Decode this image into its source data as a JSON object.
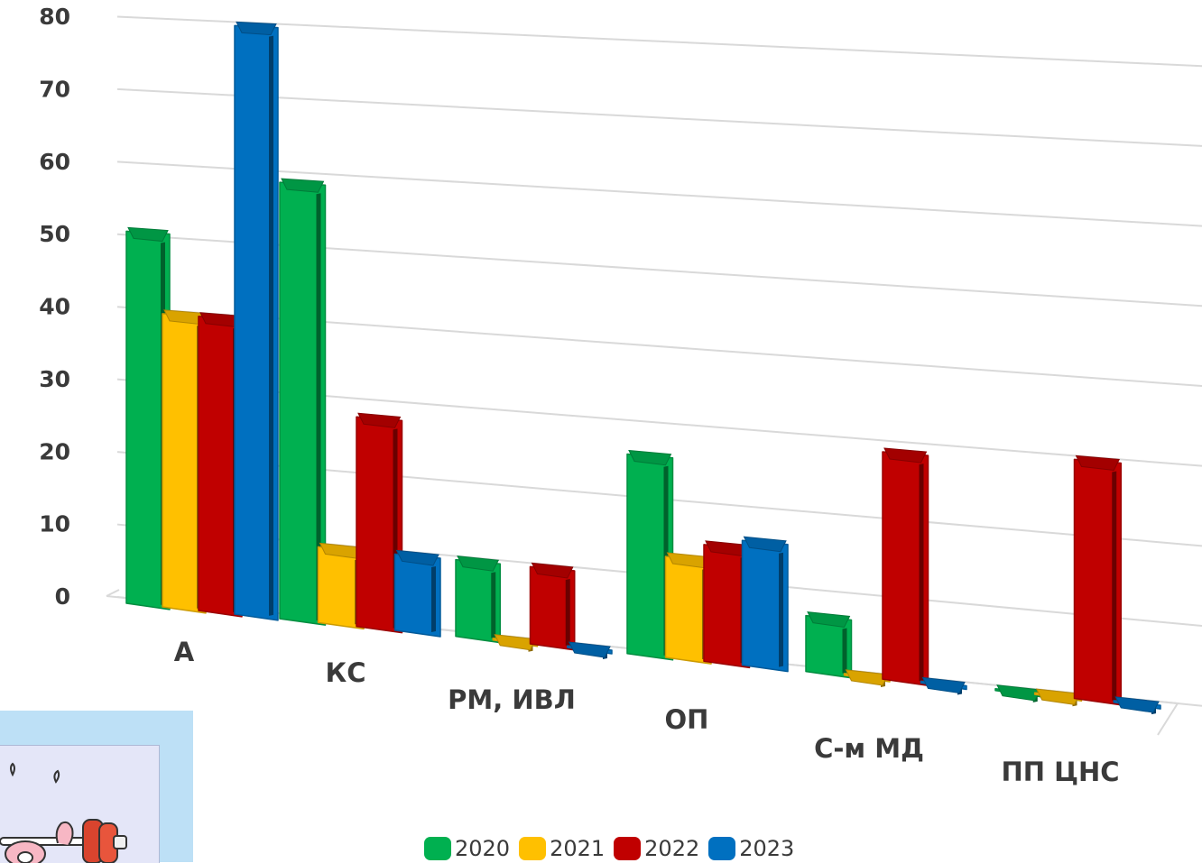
{
  "chart_data": {
    "type": "bar",
    "categories": [
      "А",
      "КС",
      "РМ, ИВЛ",
      "ОП",
      "С-м МД",
      "ПП ЦНС"
    ],
    "series": [
      {
        "name": "2020",
        "color": "#00b050",
        "values": [
          51,
          59,
          10,
          26,
          7,
          0
        ]
      },
      {
        "name": "2021",
        "color": "#ffc000",
        "values": [
          40,
          10,
          0,
          13,
          0,
          0
        ]
      },
      {
        "name": "2022",
        "color": "#c00000",
        "values": [
          40,
          28,
          10,
          15,
          29,
          30
        ]
      },
      {
        "name": "2023",
        "color": "#0070c0",
        "values": [
          80,
          10,
          0,
          16,
          0,
          0
        ]
      }
    ],
    "ylim": [
      0,
      80
    ],
    "yticks": [
      "0",
      "10",
      "20",
      "30",
      "40",
      "50",
      "60",
      "70",
      "80"
    ],
    "grid": true,
    "legend_position": "bottom"
  },
  "legend": {
    "items": [
      {
        "label": "2020",
        "color": "#00b050"
      },
      {
        "label": "2021",
        "color": "#ffc000"
      },
      {
        "label": "2022",
        "color": "#c00000"
      },
      {
        "label": "2023",
        "color": "#0070c0"
      }
    ]
  },
  "cartoon": {
    "icon": "weightlifting-brain-cartoon-icon"
  }
}
